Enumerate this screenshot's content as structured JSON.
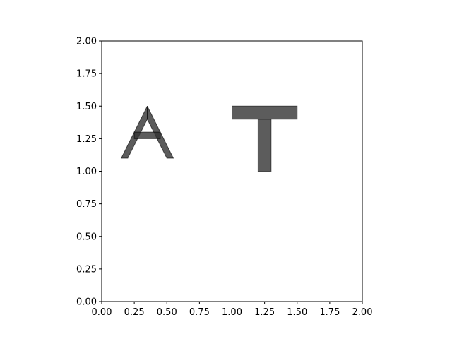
{
  "chart_data": {
    "type": "area",
    "title": "",
    "xlabel": "",
    "ylabel": "",
    "xlim": [
      0,
      2
    ],
    "ylim": [
      0,
      2
    ],
    "grid": false,
    "aspect": "equal",
    "xticks": [
      0.0,
      0.25,
      0.5,
      0.75,
      1.0,
      1.25,
      1.5,
      1.75,
      2.0
    ],
    "xtick_labels": [
      "0.00",
      "0.25",
      "0.50",
      "0.75",
      "1.00",
      "1.25",
      "1.50",
      "1.75",
      "2.00"
    ],
    "yticks": [
      0.0,
      0.25,
      0.5,
      0.75,
      1.0,
      1.25,
      1.5,
      1.75,
      2.0
    ],
    "ytick_labels": [
      "0.00",
      "0.25",
      "0.50",
      "0.75",
      "1.00",
      "1.25",
      "1.50",
      "1.75",
      "2.00"
    ],
    "fill_color": "#333333",
    "fill_opacity": 0.8,
    "edge_color": "#000000",
    "polygons": [
      {
        "glyph": "A",
        "part": "left-stroke",
        "points": [
          [
            0.15,
            1.1
          ],
          [
            0.2,
            1.1
          ],
          [
            0.35,
            1.4
          ],
          [
            0.35,
            1.5
          ]
        ]
      },
      {
        "glyph": "A",
        "part": "right-stroke",
        "points": [
          [
            0.35,
            1.5
          ],
          [
            0.35,
            1.4
          ],
          [
            0.5,
            1.1
          ],
          [
            0.55,
            1.1
          ]
        ]
      },
      {
        "glyph": "A",
        "part": "crossbar",
        "points": [
          [
            0.25,
            1.25
          ],
          [
            0.45,
            1.25
          ],
          [
            0.45,
            1.3
          ],
          [
            0.25,
            1.3
          ]
        ]
      },
      {
        "glyph": "T",
        "part": "top-bar",
        "points": [
          [
            1.0,
            1.4
          ],
          [
            1.5,
            1.4
          ],
          [
            1.5,
            1.5
          ],
          [
            1.0,
            1.5
          ]
        ]
      },
      {
        "glyph": "T",
        "part": "stem",
        "points": [
          [
            1.2,
            1.0
          ],
          [
            1.3,
            1.0
          ],
          [
            1.3,
            1.4
          ],
          [
            1.2,
            1.4
          ]
        ]
      }
    ]
  }
}
